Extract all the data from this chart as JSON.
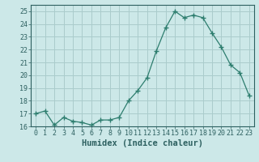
{
  "x": [
    0,
    1,
    2,
    3,
    4,
    5,
    6,
    7,
    8,
    9,
    10,
    11,
    12,
    13,
    14,
    15,
    16,
    17,
    18,
    19,
    20,
    21,
    22,
    23
  ],
  "y": [
    17.0,
    17.2,
    16.1,
    16.7,
    16.4,
    16.3,
    16.1,
    16.5,
    16.5,
    16.7,
    18.0,
    18.8,
    19.8,
    21.9,
    23.7,
    25.0,
    24.5,
    24.7,
    24.5,
    23.3,
    22.2,
    20.8,
    20.2,
    18.4
  ],
  "xlabel": "Humidex (Indice chaleur)",
  "ylabel": "",
  "xlim": [
    -0.5,
    23.5
  ],
  "ylim": [
    16,
    25.5
  ],
  "yticks": [
    16,
    17,
    18,
    19,
    20,
    21,
    22,
    23,
    24,
    25
  ],
  "xticks": [
    0,
    1,
    2,
    3,
    4,
    5,
    6,
    7,
    8,
    9,
    10,
    11,
    12,
    13,
    14,
    15,
    16,
    17,
    18,
    19,
    20,
    21,
    22,
    23
  ],
  "line_color": "#2d7d6e",
  "marker": "+",
  "marker_size": 4,
  "bg_color": "#cce8e8",
  "grid_color": "#aacccc",
  "font_color": "#2d6060",
  "font_family": "monospace",
  "xlabel_fontsize": 7.5,
  "tick_fontsize": 6.0
}
